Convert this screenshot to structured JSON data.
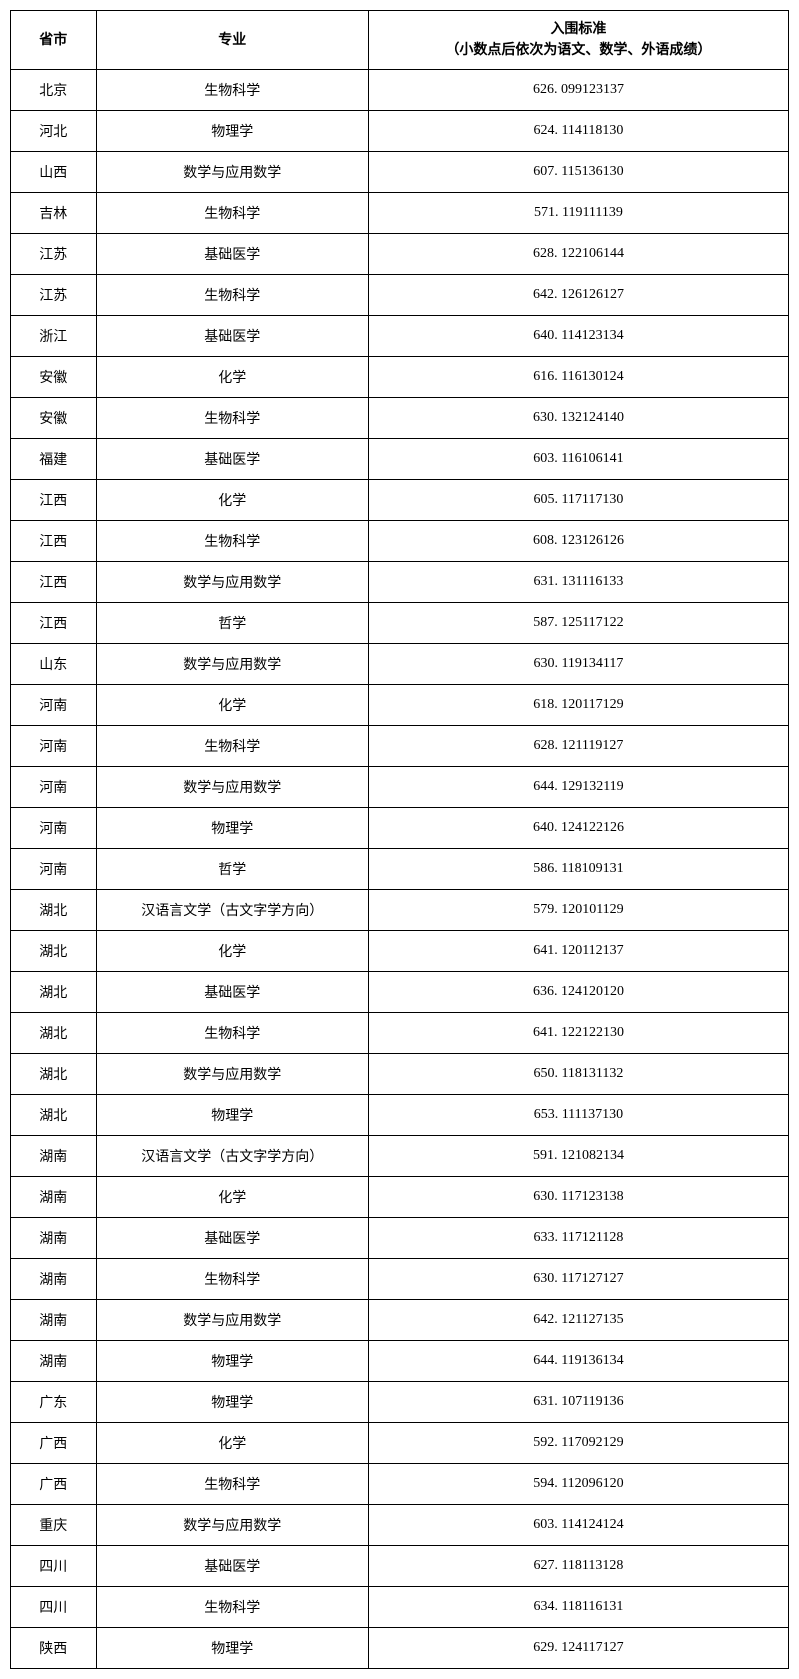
{
  "table": {
    "headers": {
      "province": "省市",
      "major": "专业",
      "score": "入围标准\n（小数点后依次为语文、数学、外语成绩）"
    },
    "rows": [
      {
        "province": "北京",
        "major": "生物科学",
        "score": "626. 099123137"
      },
      {
        "province": "河北",
        "major": "物理学",
        "score": "624. 114118130"
      },
      {
        "province": "山西",
        "major": "数学与应用数学",
        "score": "607. 115136130"
      },
      {
        "province": "吉林",
        "major": "生物科学",
        "score": "571. 119111139"
      },
      {
        "province": "江苏",
        "major": "基础医学",
        "score": "628. 122106144"
      },
      {
        "province": "江苏",
        "major": "生物科学",
        "score": "642. 126126127"
      },
      {
        "province": "浙江",
        "major": "基础医学",
        "score": "640. 114123134"
      },
      {
        "province": "安徽",
        "major": "化学",
        "score": "616. 116130124"
      },
      {
        "province": "安徽",
        "major": "生物科学",
        "score": "630. 132124140"
      },
      {
        "province": "福建",
        "major": "基础医学",
        "score": "603. 116106141"
      },
      {
        "province": "江西",
        "major": "化学",
        "score": "605. 117117130"
      },
      {
        "province": "江西",
        "major": "生物科学",
        "score": "608. 123126126"
      },
      {
        "province": "江西",
        "major": "数学与应用数学",
        "score": "631. 131116133"
      },
      {
        "province": "江西",
        "major": "哲学",
        "score": "587. 125117122"
      },
      {
        "province": "山东",
        "major": "数学与应用数学",
        "score": "630. 119134117"
      },
      {
        "province": "河南",
        "major": "化学",
        "score": "618. 120117129"
      },
      {
        "province": "河南",
        "major": "生物科学",
        "score": "628. 121119127"
      },
      {
        "province": "河南",
        "major": "数学与应用数学",
        "score": "644. 129132119"
      },
      {
        "province": "河南",
        "major": "物理学",
        "score": "640. 124122126"
      },
      {
        "province": "河南",
        "major": "哲学",
        "score": "586. 118109131"
      },
      {
        "province": "湖北",
        "major": "汉语言文学（古文字学方向）",
        "score": "579. 120101129"
      },
      {
        "province": "湖北",
        "major": "化学",
        "score": "641. 120112137"
      },
      {
        "province": "湖北",
        "major": "基础医学",
        "score": "636. 124120120"
      },
      {
        "province": "湖北",
        "major": "生物科学",
        "score": "641. 122122130"
      },
      {
        "province": "湖北",
        "major": "数学与应用数学",
        "score": "650. 118131132"
      },
      {
        "province": "湖北",
        "major": "物理学",
        "score": "653. 111137130"
      },
      {
        "province": "湖南",
        "major": "汉语言文学（古文字学方向）",
        "score": "591. 121082134"
      },
      {
        "province": "湖南",
        "major": "化学",
        "score": "630. 117123138"
      },
      {
        "province": "湖南",
        "major": "基础医学",
        "score": "633. 117121128"
      },
      {
        "province": "湖南",
        "major": "生物科学",
        "score": "630. 117127127"
      },
      {
        "province": "湖南",
        "major": "数学与应用数学",
        "score": "642. 121127135"
      },
      {
        "province": "湖南",
        "major": "物理学",
        "score": "644. 119136134"
      },
      {
        "province": "广东",
        "major": "物理学",
        "score": "631. 107119136"
      },
      {
        "province": "广西",
        "major": "化学",
        "score": "592. 117092129"
      },
      {
        "province": "广西",
        "major": "生物科学",
        "score": "594. 112096120"
      },
      {
        "province": "重庆",
        "major": "数学与应用数学",
        "score": "603. 114124124"
      },
      {
        "province": "四川",
        "major": "基础医学",
        "score": "627. 118113128"
      },
      {
        "province": "四川",
        "major": "生物科学",
        "score": "634. 118116131"
      },
      {
        "province": "陕西",
        "major": "物理学",
        "score": "629. 124117127"
      }
    ],
    "colors": {
      "border": "#000000",
      "background": "#ffffff",
      "text": "#000000"
    },
    "typography": {
      "font_family": "SimSun",
      "header_fontsize": 14,
      "cell_fontsize": 14,
      "header_fontweight": "bold"
    },
    "column_widths": {
      "province": "11%",
      "major": "35%",
      "score": "54%"
    }
  }
}
